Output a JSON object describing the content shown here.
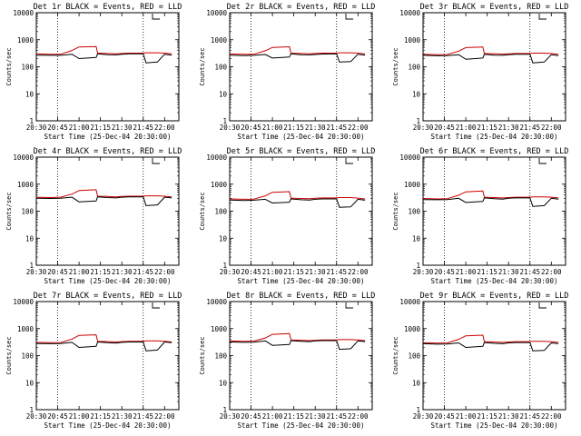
{
  "chart_data": [
    {
      "type": "line",
      "title": "Det 1r BLACK = Events, RED = LLD",
      "xlabel": "Start Time (25-Dec-04 20:30:00)",
      "ylabel": "Counts/sec",
      "yscale": "log",
      "ylim": [
        1,
        10000
      ],
      "x_tick_labels": [
        "20:30",
        "20:45",
        "21:00",
        "21:15",
        "21:30",
        "21:45",
        "22:00"
      ],
      "y_tick_labels": [
        "1",
        "10",
        "100",
        "1000",
        "10000"
      ],
      "dotted_vertical_lines": [
        "20:45",
        "21:45"
      ],
      "legend": "top-right",
      "series": [
        {
          "name": "Events",
          "color": "#000000",
          "x": [
            "20:30",
            "20:40",
            "20:47",
            "20:55",
            "21:00",
            "21:12",
            "21:13",
            "21:20",
            "21:26",
            "21:30",
            "21:35",
            "21:45",
            "21:47",
            "21:55",
            "22:00",
            "22:05"
          ],
          "y": [
            270,
            265,
            265,
            290,
            200,
            220,
            300,
            280,
            275,
            290,
            300,
            300,
            140,
            150,
            290,
            270
          ]
        },
        {
          "name": "LLD",
          "color": "#cc0000",
          "x": [
            "20:30",
            "20:40",
            "20:47",
            "20:55",
            "21:00",
            "21:12",
            "21:13",
            "21:20",
            "21:26",
            "21:30",
            "21:35",
            "21:45",
            "21:47",
            "21:55",
            "22:00",
            "22:05"
          ],
          "y": [
            300,
            290,
            290,
            400,
            540,
            560,
            320,
            310,
            300,
            310,
            320,
            320,
            330,
            330,
            320,
            300
          ]
        }
      ]
    },
    {
      "type": "line",
      "title": "Det 2r BLACK = Events, RED = LLD",
      "xlabel": "Start Time (25-Dec-04 20:30:00)",
      "ylabel": "Counts/sec",
      "yscale": "log",
      "ylim": [
        1,
        10000
      ],
      "x_tick_labels": [
        "20:30",
        "20:45",
        "21:00",
        "21:15",
        "21:30",
        "21:45",
        "22:00"
      ],
      "y_tick_labels": [
        "1",
        "10",
        "100",
        "1000",
        "10000"
      ],
      "dotted_vertical_lines": [
        "20:45",
        "21:45"
      ],
      "legend": "top-right",
      "series": [
        {
          "name": "Events",
          "color": "#000000",
          "x": [
            "20:30",
            "20:40",
            "20:47",
            "20:55",
            "21:00",
            "21:12",
            "21:13",
            "21:20",
            "21:26",
            "21:30",
            "21:35",
            "21:45",
            "21:47",
            "21:55",
            "22:00",
            "22:05"
          ],
          "y": [
            270,
            260,
            265,
            285,
            210,
            230,
            300,
            280,
            275,
            285,
            295,
            300,
            150,
            155,
            290,
            270
          ]
        },
        {
          "name": "LLD",
          "color": "#cc0000",
          "x": [
            "20:30",
            "20:40",
            "20:47",
            "20:55",
            "21:00",
            "21:12",
            "21:13",
            "21:20",
            "21:26",
            "21:30",
            "21:35",
            "21:45",
            "21:47",
            "21:55",
            "22:00",
            "22:05"
          ],
          "y": [
            300,
            290,
            290,
            390,
            520,
            550,
            320,
            310,
            300,
            310,
            320,
            320,
            330,
            330,
            320,
            300
          ]
        }
      ]
    },
    {
      "type": "line",
      "title": "Det 3r BLACK = Events, RED = LLD",
      "xlabel": "Start Time (25-Dec-04 20:30:00)",
      "ylabel": "Counts/sec",
      "yscale": "log",
      "ylim": [
        1,
        10000
      ],
      "x_tick_labels": [
        "20:30",
        "20:45",
        "21:00",
        "21:15",
        "21:30",
        "21:45",
        "22:00"
      ],
      "y_tick_labels": [
        "1",
        "10",
        "100",
        "1000",
        "10000"
      ],
      "dotted_vertical_lines": [
        "20:45",
        "21:45"
      ],
      "legend": "top-right",
      "series": [
        {
          "name": "Events",
          "color": "#000000",
          "x": [
            "20:30",
            "20:40",
            "20:47",
            "20:55",
            "21:00",
            "21:12",
            "21:13",
            "21:20",
            "21:26",
            "21:30",
            "21:35",
            "21:45",
            "21:47",
            "21:55",
            "22:00",
            "22:05"
          ],
          "y": [
            265,
            255,
            260,
            280,
            190,
            210,
            290,
            270,
            265,
            280,
            290,
            290,
            140,
            150,
            280,
            260
          ]
        },
        {
          "name": "LLD",
          "color": "#cc0000",
          "x": [
            "20:30",
            "20:40",
            "20:47",
            "20:55",
            "21:00",
            "21:12",
            "21:13",
            "21:20",
            "21:26",
            "21:30",
            "21:35",
            "21:45",
            "21:47",
            "21:55",
            "22:00",
            "22:05"
          ],
          "y": [
            290,
            280,
            285,
            380,
            510,
            540,
            310,
            300,
            295,
            300,
            310,
            310,
            320,
            320,
            310,
            290
          ]
        }
      ]
    },
    {
      "type": "line",
      "title": "Det 4r BLACK = Events, RED = LLD",
      "xlabel": "Start Time (25-Dec-04 20:30:00)",
      "ylabel": "Counts/sec",
      "yscale": "log",
      "ylim": [
        1,
        10000
      ],
      "x_tick_labels": [
        "20:30",
        "20:45",
        "21:00",
        "21:15",
        "21:30",
        "21:45",
        "22:00"
      ],
      "y_tick_labels": [
        "1",
        "10",
        "100",
        "1000",
        "10000"
      ],
      "dotted_vertical_lines": [
        "20:45",
        "21:45"
      ],
      "legend": "top-right",
      "series": [
        {
          "name": "Events",
          "color": "#000000",
          "x": [
            "20:30",
            "20:40",
            "20:47",
            "20:55",
            "21:00",
            "21:12",
            "21:13",
            "21:20",
            "21:26",
            "21:30",
            "21:35",
            "21:45",
            "21:47",
            "21:55",
            "22:00",
            "22:05"
          ],
          "y": [
            300,
            295,
            300,
            330,
            220,
            240,
            340,
            320,
            310,
            330,
            340,
            340,
            160,
            170,
            330,
            310
          ]
        },
        {
          "name": "LLD",
          "color": "#cc0000",
          "x": [
            "20:30",
            "20:40",
            "20:47",
            "20:55",
            "21:00",
            "21:12",
            "21:13",
            "21:20",
            "21:26",
            "21:30",
            "21:35",
            "21:45",
            "21:47",
            "21:55",
            "22:00",
            "22:05"
          ],
          "y": [
            330,
            320,
            330,
            430,
            580,
            620,
            360,
            350,
            340,
            350,
            360,
            360,
            370,
            370,
            360,
            340
          ]
        }
      ]
    },
    {
      "type": "line",
      "title": "Det 5r BLACK = Events, RED = LLD",
      "xlabel": "Start Time (25-Dec-04 20:30:00)",
      "ylabel": "Counts/sec",
      "yscale": "log",
      "ylim": [
        1,
        10000
      ],
      "x_tick_labels": [
        "20:30",
        "20:45",
        "21:00",
        "21:15",
        "21:30",
        "21:45",
        "22:00"
      ],
      "y_tick_labels": [
        "1",
        "10",
        "100",
        "1000",
        "10000"
      ],
      "dotted_vertical_lines": [
        "20:45",
        "21:45"
      ],
      "legend": "top-right",
      "series": [
        {
          "name": "Events",
          "color": "#000000",
          "x": [
            "20:30",
            "20:40",
            "20:47",
            "20:55",
            "21:00",
            "21:12",
            "21:13",
            "21:20",
            "21:26",
            "21:30",
            "21:35",
            "21:45",
            "21:47",
            "21:55",
            "22:00",
            "22:05"
          ],
          "y": [
            260,
            250,
            255,
            275,
            200,
            215,
            285,
            265,
            260,
            275,
            285,
            285,
            140,
            145,
            275,
            255
          ]
        },
        {
          "name": "LLD",
          "color": "#cc0000",
          "x": [
            "20:30",
            "20:40",
            "20:47",
            "20:55",
            "21:00",
            "21:12",
            "21:13",
            "21:20",
            "21:26",
            "21:30",
            "21:35",
            "21:45",
            "21:47",
            "21:55",
            "22:00",
            "22:05"
          ],
          "y": [
            285,
            275,
            280,
            370,
            500,
            530,
            305,
            295,
            290,
            300,
            310,
            310,
            320,
            320,
            305,
            285
          ]
        }
      ]
    },
    {
      "type": "line",
      "title": "Det 6r BLACK = Events, RED = LLD",
      "xlabel": "Start Time (25-Dec-04 20:30:00)",
      "ylabel": "Counts/sec",
      "yscale": "log",
      "ylim": [
        1,
        10000
      ],
      "x_tick_labels": [
        "20:30",
        "20:45",
        "21:00",
        "21:15",
        "21:30",
        "21:45",
        "22:00"
      ],
      "y_tick_labels": [
        "1",
        "10",
        "100",
        "1000",
        "10000"
      ],
      "dotted_vertical_lines": [
        "20:45",
        "21:45"
      ],
      "legend": "top-right",
      "series": [
        {
          "name": "Events",
          "color": "#000000",
          "x": [
            "20:30",
            "20:40",
            "20:47",
            "20:55",
            "21:00",
            "21:12",
            "21:13",
            "21:20",
            "21:26",
            "21:30",
            "21:35",
            "21:45",
            "21:47",
            "21:55",
            "22:00",
            "22:05"
          ],
          "y": [
            270,
            265,
            270,
            300,
            210,
            230,
            310,
            290,
            280,
            300,
            310,
            310,
            150,
            160,
            300,
            280
          ]
        },
        {
          "name": "LLD",
          "color": "#cc0000",
          "x": [
            "20:30",
            "20:40",
            "20:47",
            "20:55",
            "21:00",
            "21:12",
            "21:13",
            "21:20",
            "21:26",
            "21:30",
            "21:35",
            "21:45",
            "21:47",
            "21:55",
            "22:00",
            "22:05"
          ],
          "y": [
            295,
            285,
            290,
            390,
            520,
            560,
            330,
            320,
            310,
            320,
            330,
            330,
            340,
            340,
            330,
            310
          ]
        }
      ]
    },
    {
      "type": "line",
      "title": "Det 7r BLACK = Events, RED = LLD",
      "xlabel": "Start Time (25-Dec-04 20:30:00)",
      "ylabel": "Counts/sec",
      "yscale": "log",
      "ylim": [
        1,
        10000
      ],
      "x_tick_labels": [
        "20:30",
        "20:45",
        "21:00",
        "21:15",
        "21:30",
        "21:45",
        "22:00"
      ],
      "y_tick_labels": [
        "1",
        "10",
        "100",
        "1000",
        "10000"
      ],
      "dotted_vertical_lines": [
        "20:45",
        "21:45"
      ],
      "legend": "top-right",
      "series": [
        {
          "name": "Events",
          "color": "#000000",
          "x": [
            "20:30",
            "20:40",
            "20:47",
            "20:55",
            "21:00",
            "21:12",
            "21:13",
            "21:20",
            "21:26",
            "21:30",
            "21:35",
            "21:45",
            "21:47",
            "21:55",
            "22:00",
            "22:05"
          ],
          "y": [
            280,
            275,
            280,
            310,
            200,
            220,
            320,
            300,
            290,
            310,
            320,
            320,
            150,
            160,
            320,
            300
          ]
        },
        {
          "name": "LLD",
          "color": "#cc0000",
          "x": [
            "20:30",
            "20:40",
            "20:47",
            "20:55",
            "21:00",
            "21:12",
            "21:13",
            "21:20",
            "21:26",
            "21:30",
            "21:35",
            "21:45",
            "21:47",
            "21:55",
            "22:00",
            "22:05"
          ],
          "y": [
            310,
            300,
            305,
            410,
            560,
            590,
            340,
            330,
            320,
            330,
            340,
            340,
            350,
            350,
            340,
            320
          ]
        }
      ]
    },
    {
      "type": "line",
      "title": "Det 8r BLACK = Events, RED = LLD",
      "xlabel": "Start Time (25-Dec-04 20:30:00)",
      "ylabel": "Counts/sec",
      "yscale": "log",
      "ylim": [
        1,
        10000
      ],
      "x_tick_labels": [
        "20:30",
        "20:45",
        "21:00",
        "21:15",
        "21:30",
        "21:45",
        "22:00"
      ],
      "y_tick_labels": [
        "1",
        "10",
        "100",
        "1000",
        "10000"
      ],
      "dotted_vertical_lines": [
        "20:45",
        "21:45"
      ],
      "legend": "top-right",
      "series": [
        {
          "name": "Events",
          "color": "#000000",
          "x": [
            "20:30",
            "20:40",
            "20:47",
            "20:55",
            "21:00",
            "21:12",
            "21:13",
            "21:20",
            "21:26",
            "21:30",
            "21:35",
            "21:45",
            "21:47",
            "21:55",
            "22:00",
            "22:05"
          ],
          "y": [
            320,
            310,
            315,
            350,
            240,
            260,
            360,
            340,
            330,
            350,
            360,
            360,
            170,
            180,
            350,
            330
          ]
        },
        {
          "name": "LLD",
          "color": "#cc0000",
          "x": [
            "20:30",
            "20:40",
            "20:47",
            "20:55",
            "21:00",
            "21:12",
            "21:13",
            "21:20",
            "21:26",
            "21:30",
            "21:35",
            "21:45",
            "21:47",
            "21:55",
            "22:00",
            "22:05"
          ],
          "y": [
            350,
            340,
            345,
            450,
            610,
            650,
            380,
            370,
            360,
            370,
            380,
            380,
            390,
            390,
            380,
            360
          ]
        }
      ]
    },
    {
      "type": "line",
      "title": "Det 9r BLACK = Events, RED = LLD",
      "xlabel": "Start Time (25-Dec-04 20:30:00)",
      "ylabel": "Counts/sec",
      "yscale": "log",
      "ylim": [
        1,
        10000
      ],
      "x_tick_labels": [
        "20:30",
        "20:45",
        "21:00",
        "21:15",
        "21:30",
        "21:45",
        "22:00"
      ],
      "y_tick_labels": [
        "1",
        "10",
        "100",
        "1000",
        "10000"
      ],
      "dotted_vertical_lines": [
        "20:45",
        "21:45"
      ],
      "legend": "top-right",
      "series": [
        {
          "name": "Events",
          "color": "#000000",
          "x": [
            "20:30",
            "20:40",
            "20:47",
            "20:55",
            "21:00",
            "21:12",
            "21:13",
            "21:20",
            "21:26",
            "21:30",
            "21:35",
            "21:45",
            "21:47",
            "21:55",
            "22:00",
            "22:05"
          ],
          "y": [
            275,
            265,
            270,
            295,
            200,
            220,
            305,
            285,
            275,
            295,
            305,
            305,
            150,
            155,
            295,
            275
          ]
        },
        {
          "name": "LLD",
          "color": "#cc0000",
          "x": [
            "20:30",
            "20:40",
            "20:47",
            "20:55",
            "21:00",
            "21:12",
            "21:13",
            "21:20",
            "21:26",
            "21:30",
            "21:35",
            "21:45",
            "21:47",
            "21:55",
            "22:00",
            "22:05"
          ],
          "y": [
            300,
            290,
            295,
            400,
            540,
            570,
            330,
            320,
            310,
            320,
            330,
            330,
            340,
            340,
            330,
            310
          ]
        }
      ]
    }
  ]
}
